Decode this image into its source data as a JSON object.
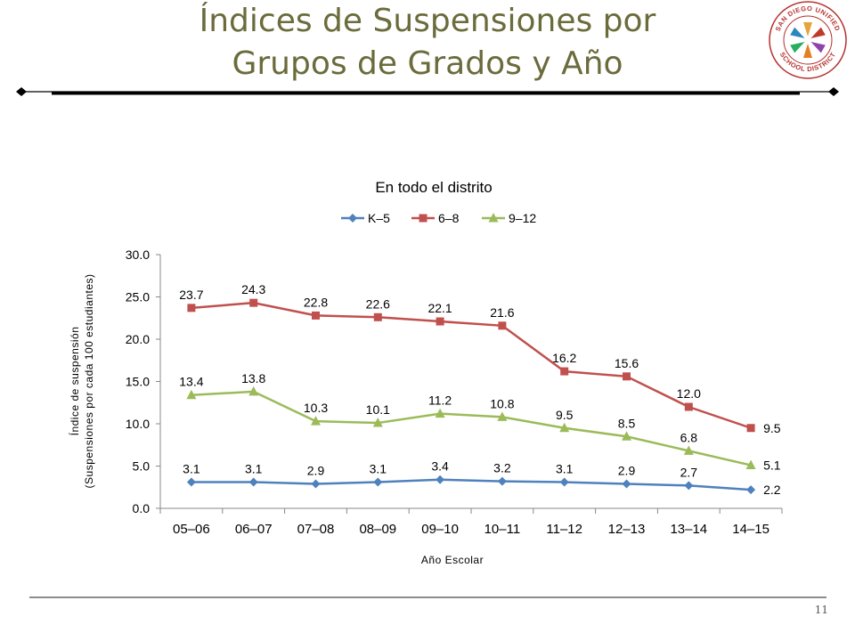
{
  "slide": {
    "title_line1": "Índices de Suspensiones por",
    "title_line2": "Grupos de Grados y Año",
    "page_number": "11",
    "logo_text_top": "SAN DIEGO UNIFIED",
    "logo_text_bottom": "SCHOOL DISTRICT"
  },
  "colors": {
    "title": "#6b6b3c",
    "k5": "#4f81bd",
    "g68": "#c0504d",
    "g912": "#9bbb59"
  },
  "chart_data": {
    "type": "line",
    "title": "En todo el distrito",
    "xlabel": "Año Escolar",
    "ylabel_line1": "Índice de suspensión",
    "ylabel_line2": "(Suspensiones por cada 100 estudiantes)",
    "ylim": [
      0,
      30
    ],
    "yticks": [
      0,
      5,
      10,
      15,
      20,
      25,
      30
    ],
    "ytick_labels": [
      "0.0",
      "5.0",
      "10.0",
      "15.0",
      "20.0",
      "25.0",
      "30.0"
    ],
    "legend_position": "top",
    "grid": false,
    "categories": [
      "05–06",
      "06–07",
      "07–08",
      "08–09",
      "09–10",
      "10–11",
      "11–12",
      "12–13",
      "13–14",
      "14–15"
    ],
    "series": [
      {
        "name": "K–5",
        "color": "#4f81bd",
        "marker": "diamond",
        "values": [
          3.1,
          3.1,
          2.9,
          3.1,
          3.4,
          3.2,
          3.1,
          2.9,
          2.7,
          2.2
        ],
        "labels": [
          "3.1",
          "3.1",
          "2.9",
          "3.1",
          "3.4",
          "3.2",
          "3.1",
          "2.9",
          "2.7",
          "2.2"
        ]
      },
      {
        "name": "6–8",
        "color": "#c0504d",
        "marker": "square",
        "values": [
          23.7,
          24.3,
          22.8,
          22.6,
          22.1,
          21.6,
          16.2,
          15.6,
          12.0,
          9.5
        ],
        "labels": [
          "23.7",
          "24.3",
          "22.8",
          "22.6",
          "22.1",
          "21.6",
          "16.2",
          "15.6",
          "12.0",
          "9.5"
        ]
      },
      {
        "name": "9–12",
        "color": "#9bbb59",
        "marker": "triangle",
        "values": [
          13.4,
          13.8,
          10.3,
          10.1,
          11.2,
          10.8,
          9.5,
          8.5,
          6.8,
          5.1
        ],
        "labels": [
          "13.4",
          "13.8",
          "10.3",
          "10.1",
          "11.2",
          "10.8",
          "9.5",
          "8.5",
          "6.8",
          "5.1"
        ]
      }
    ]
  }
}
